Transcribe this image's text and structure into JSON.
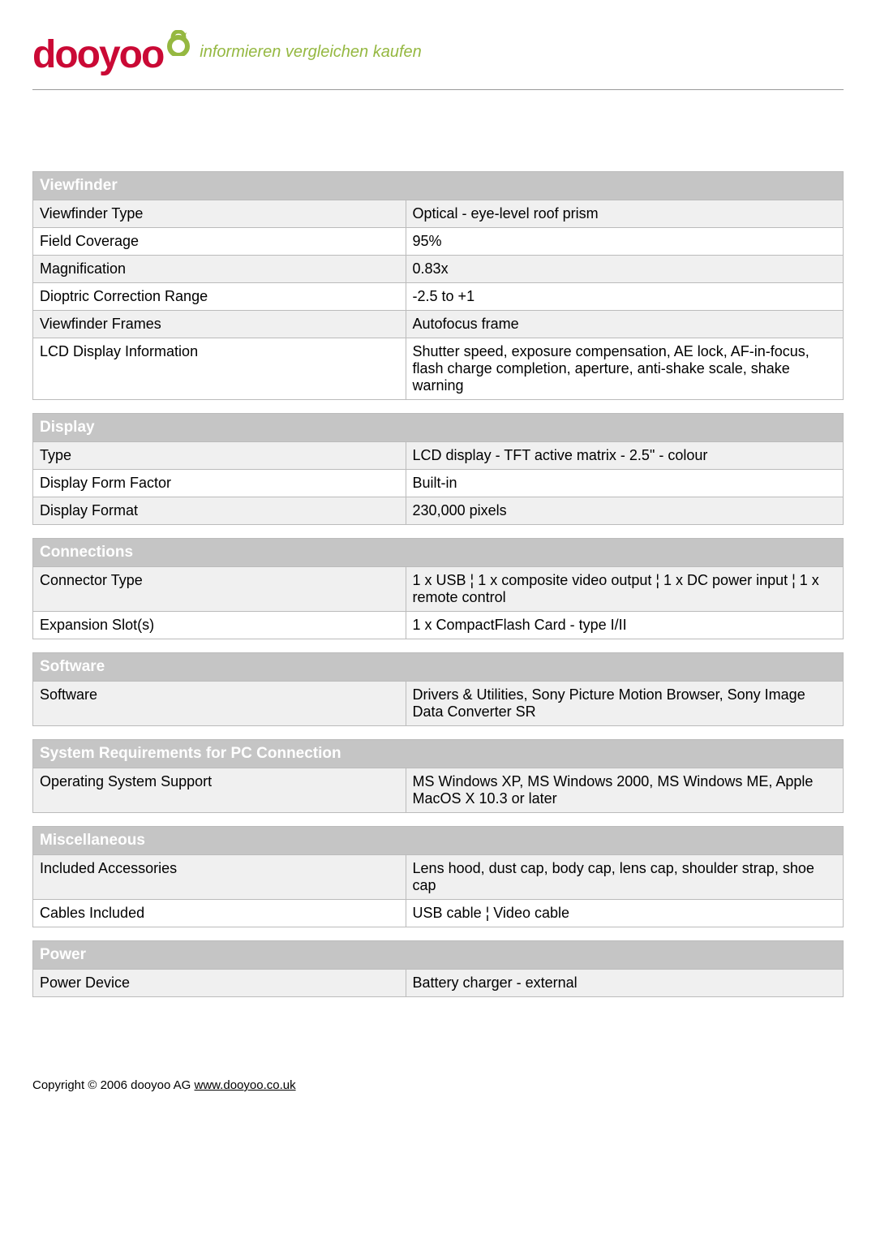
{
  "logo": {
    "text": "dooyoo",
    "tagline": "informieren vergleichen kaufen",
    "color": "#ca0935",
    "tagline_color": "#95b841",
    "icon_color": "#95b841"
  },
  "sections": [
    {
      "header": "Viewfinder",
      "rows": [
        {
          "label": "Viewfinder Type",
          "value": "Optical - eye-level roof prism"
        },
        {
          "label": "Field Coverage",
          "value": "95%"
        },
        {
          "label": "Magnification",
          "value": "0.83x"
        },
        {
          "label": "Dioptric Correction Range",
          "value": "-2.5 to +1"
        },
        {
          "label": "Viewfinder Frames",
          "value": "Autofocus frame"
        },
        {
          "label": "LCD Display Information",
          "value": "Shutter speed, exposure compensation, AE lock, AF-in-focus, flash charge completion, aperture, anti-shake scale, shake warning"
        }
      ]
    },
    {
      "header": "Display",
      "rows": [
        {
          "label": "Type",
          "value": "LCD display - TFT active matrix - 2.5\" - colour"
        },
        {
          "label": "Display Form Factor",
          "value": "Built-in"
        },
        {
          "label": "Display Format",
          "value": "230,000 pixels"
        }
      ]
    },
    {
      "header": "Connections",
      "rows": [
        {
          "label": "Connector Type",
          "value": "1 x USB ¦ 1 x composite video output ¦ 1 x DC power input ¦ 1 x remote control"
        },
        {
          "label": "Expansion Slot(s)",
          "value": "1 x CompactFlash Card - type I/II"
        }
      ]
    },
    {
      "header": "Software",
      "rows": [
        {
          "label": "Software",
          "value": "Drivers & Utilities, Sony Picture Motion Browser, Sony Image Data Converter SR"
        }
      ]
    },
    {
      "header": "System Requirements for PC Connection",
      "rows": [
        {
          "label": "Operating System Support",
          "value": "MS Windows XP, MS Windows 2000, MS Windows ME, Apple MacOS X 10.3 or later"
        }
      ]
    },
    {
      "header": "Miscellaneous",
      "rows": [
        {
          "label": "Included Accessories",
          "value": "Lens hood, dust cap, body cap, lens cap, shoulder strap, shoe cap"
        },
        {
          "label": "Cables Included",
          "value": "USB cable ¦ Video cable"
        }
      ]
    },
    {
      "header": "Power",
      "rows": [
        {
          "label": "Power Device",
          "value": "Battery charger - external"
        }
      ]
    }
  ],
  "footer": {
    "copyright": "Copyright © 2006 dooyoo AG ",
    "link_text": "www.dooyoo.co.uk"
  },
  "styling": {
    "header_bg": "#c5c5c5",
    "header_text": "#ffffff",
    "border_color": "#bbbbbb",
    "alt_row_bg": "#f0f0f0",
    "row_bg": "#ffffff",
    "font_size_header": 19,
    "font_size_cell": 18,
    "label_width_pct": 46
  }
}
